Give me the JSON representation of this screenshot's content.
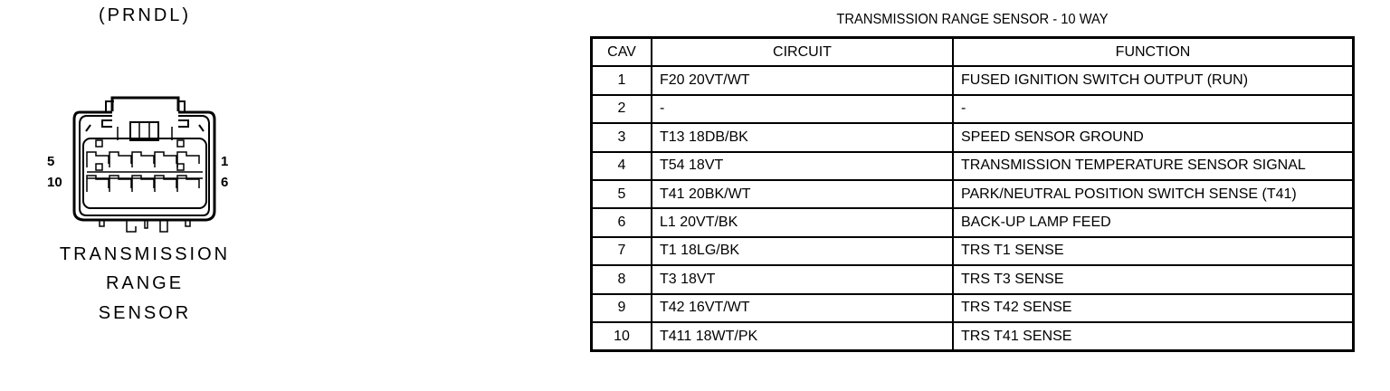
{
  "connector": {
    "position_label": "(PRNDL)",
    "name_lines": [
      "TRANSMISSION",
      "RANGE",
      "SENSOR"
    ],
    "pin_labels": {
      "top_left": "5",
      "bottom_left": "10",
      "top_right": "1",
      "bottom_right": "6"
    }
  },
  "table": {
    "title": "TRANSMISSION RANGE SENSOR - 10 WAY",
    "headers": [
      "CAV",
      "CIRCUIT",
      "FUNCTION"
    ],
    "rows": [
      [
        "1",
        "F20 20VT/WT",
        "FUSED IGNITION SWITCH OUTPUT (RUN)"
      ],
      [
        "2",
        "-",
        "-"
      ],
      [
        "3",
        "T13 18DB/BK",
        "SPEED SENSOR GROUND"
      ],
      [
        "4",
        "T54 18VT",
        "TRANSMISSION TEMPERATURE SENSOR SIGNAL"
      ],
      [
        "5",
        "T41 20BK/WT",
        "PARK/NEUTRAL POSITION SWITCH SENSE (T41)"
      ],
      [
        "6",
        "L1 20VT/BK",
        "BACK-UP LAMP FEED"
      ],
      [
        "7",
        "T1 18LG/BK",
        "TRS T1 SENSE"
      ],
      [
        "8",
        "T3 18VT",
        "TRS T3 SENSE"
      ],
      [
        "9",
        "T42 16VT/WT",
        "TRS T42 SENSE"
      ],
      [
        "10",
        "T411 18WT/PK",
        "TRS T41 SENSE"
      ]
    ]
  }
}
